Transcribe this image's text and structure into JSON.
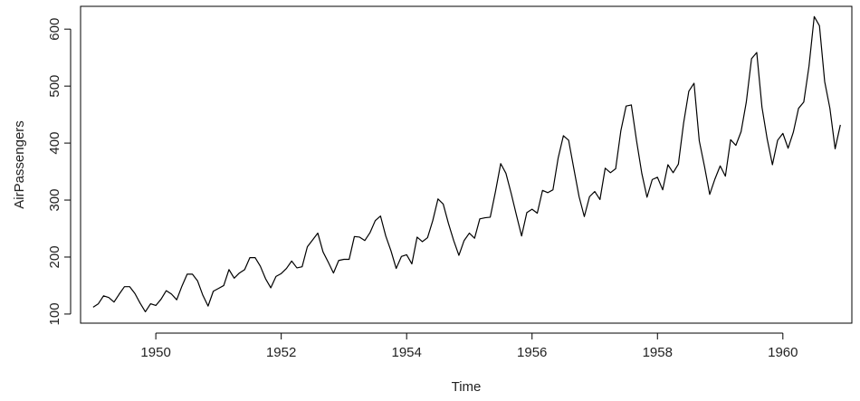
{
  "chart_data": {
    "type": "line",
    "title": "",
    "xlabel": "Time",
    "ylabel": "AirPassengers",
    "xlim": [
      1948.8,
      1961.1
    ],
    "ylim": [
      84,
      640
    ],
    "x_ticks": [
      1950,
      1952,
      1954,
      1956,
      1958,
      1960
    ],
    "x_tick_labels": [
      "1950",
      "1952",
      "1954",
      "1956",
      "1958",
      "1960"
    ],
    "y_ticks": [
      100,
      200,
      300,
      400,
      500,
      600
    ],
    "y_tick_labels": [
      "100",
      "200",
      "300",
      "400",
      "500",
      "600"
    ],
    "grid": false,
    "line_color": "#000000",
    "series": [
      {
        "x_start": 1949,
        "x_frequency": 12,
        "values": [
          112,
          118,
          132,
          129,
          121,
          135,
          148,
          148,
          136,
          119,
          104,
          118,
          115,
          126,
          141,
          135,
          125,
          149,
          170,
          170,
          158,
          133,
          114,
          140,
          145,
          150,
          178,
          163,
          172,
          178,
          199,
          199,
          184,
          162,
          146,
          166,
          171,
          180,
          193,
          181,
          183,
          218,
          230,
          242,
          209,
          191,
          172,
          194,
          196,
          196,
          236,
          235,
          229,
          243,
          264,
          272,
          237,
          211,
          180,
          201,
          204,
          188,
          235,
          227,
          234,
          264,
          302,
          293,
          259,
          229,
          203,
          229,
          242,
          233,
          267,
          269,
          270,
          315,
          364,
          347,
          312,
          274,
          237,
          278,
          284,
          277,
          317,
          313,
          318,
          374,
          413,
          405,
          355,
          306,
          271,
          306,
          315,
          301,
          356,
          348,
          355,
          422,
          465,
          467,
          404,
          347,
          305,
          336,
          340,
          318,
          362,
          348,
          363,
          435,
          491,
          505,
          404,
          359,
          310,
          337,
          360,
          342,
          406,
          396,
          420,
          472,
          548,
          559,
          463,
          407,
          362,
          405,
          417,
          391,
          419,
          461,
          472,
          535,
          622,
          606,
          508,
          461,
          390,
          432
        ]
      }
    ]
  }
}
